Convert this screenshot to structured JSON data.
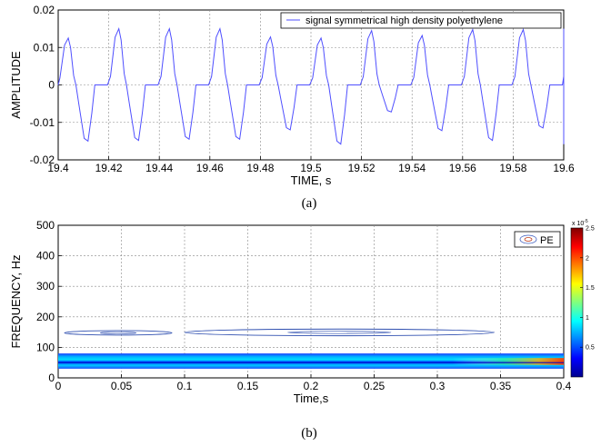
{
  "chart_data": [
    {
      "type": "line",
      "title": "",
      "caption": "(a)",
      "xlabel": "TIME, s",
      "ylabel": "AMPLITUDE",
      "xlim": [
        19.4,
        19.6
      ],
      "ylim": [
        -0.02,
        0.02
      ],
      "xticks": [
        "19.4",
        "19.42",
        "19.44",
        "19.46",
        "19.48",
        "19.5",
        "19.52",
        "19.54",
        "19.56",
        "19.58",
        "19.6"
      ],
      "yticks": [
        "-0.02",
        "-0.01",
        "0",
        "0.01",
        "0.02"
      ],
      "grid": true,
      "legend_position": "top-right",
      "color": "#4f4fff",
      "series": [
        {
          "name": "signal symmetrical high density polyethylene",
          "cycles": [
            {
              "start": 19.3955,
              "pos_peak": 0.0125,
              "neg_peak": -0.015
            },
            {
              "start": 19.4155,
              "pos_peak": 0.015,
              "neg_peak": -0.0148
            },
            {
              "start": 19.4355,
              "pos_peak": 0.015,
              "neg_peak": -0.0145
            },
            {
              "start": 19.4555,
              "pos_peak": 0.015,
              "neg_peak": -0.0145
            },
            {
              "start": 19.4755,
              "pos_peak": 0.0128,
              "neg_peak": -0.012
            },
            {
              "start": 19.4955,
              "pos_peak": 0.0125,
              "neg_peak": -0.0158
            },
            {
              "start": 19.5155,
              "pos_peak": 0.0145,
              "neg_peak": -0.0072
            },
            {
              "start": 19.5355,
              "pos_peak": 0.0132,
              "neg_peak": -0.0122
            },
            {
              "start": 19.5555,
              "pos_peak": 0.0148,
              "neg_peak": -0.0148
            },
            {
              "start": 19.5755,
              "pos_peak": 0.0148,
              "neg_peak": -0.0115
            },
            {
              "start": 19.5955,
              "pos_peak": 0.015,
              "neg_peak": -0.0158
            }
          ]
        }
      ]
    },
    {
      "type": "heatmap",
      "title": "",
      "caption": "(b)",
      "xlabel": "Time,s",
      "ylabel": "FREQUENCY, Hz",
      "xlim": [
        0,
        0.4
      ],
      "ylim": [
        0,
        500
      ],
      "xticks": [
        "0",
        "0.05",
        "0.1",
        "0.15",
        "0.2",
        "0.25",
        "0.3",
        "0.35",
        "0.4"
      ],
      "yticks": [
        "0",
        "100",
        "200",
        "300",
        "400",
        "500"
      ],
      "grid": true,
      "legend_position": "top-right",
      "legend": "PE",
      "colorbar": {
        "range": [
          0,
          2.5e-05
        ],
        "ticks": [
          "0.5",
          "1",
          "1.5",
          "2",
          "2.5"
        ],
        "exponent_label": "x 10",
        "exponent": "-5"
      },
      "bands": [
        {
          "t_start": 0.0,
          "t_end": 0.4,
          "f_low": 30,
          "f_high": 80,
          "description": "dominant band near 50 Hz",
          "peak_color": "#ff3a00"
        },
        {
          "t_start": 0.005,
          "t_end": 0.09,
          "f_low": 140,
          "f_high": 155,
          "description": "contour near 150 Hz"
        },
        {
          "t_start": 0.1,
          "t_end": 0.345,
          "f_low": 138,
          "f_high": 160,
          "description": "contour near 150 Hz"
        }
      ]
    }
  ]
}
